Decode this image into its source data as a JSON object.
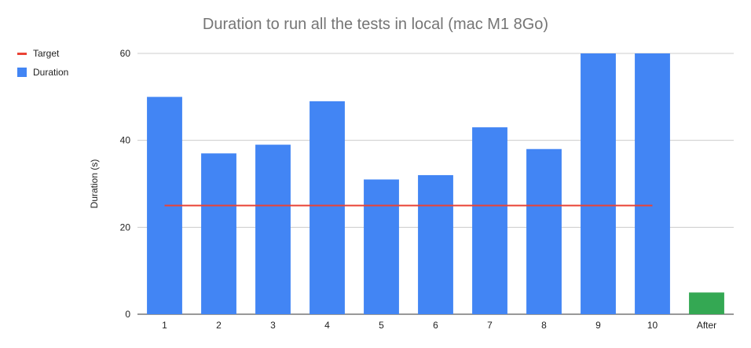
{
  "chart_data": {
    "type": "bar",
    "title": "Duration to run all the tests in local (mac M1 8Go)",
    "xlabel": "",
    "ylabel": "Duration (s)",
    "ylim": [
      0,
      60
    ],
    "yticks": [
      0,
      20,
      40,
      60
    ],
    "categories": [
      "1",
      "2",
      "3",
      "4",
      "5",
      "6",
      "7",
      "8",
      "9",
      "10",
      "After"
    ],
    "series": [
      {
        "name": "Duration",
        "type": "bar",
        "color": "#4285f4",
        "values": [
          50,
          37,
          39,
          49,
          31,
          32,
          43,
          38,
          60,
          60,
          5
        ],
        "point_colors": [
          "#4285f4",
          "#4285f4",
          "#4285f4",
          "#4285f4",
          "#4285f4",
          "#4285f4",
          "#4285f4",
          "#4285f4",
          "#4285f4",
          "#4285f4",
          "#34a853"
        ]
      },
      {
        "name": "Target",
        "type": "line",
        "color": "#ea4335",
        "values": [
          25,
          25,
          25,
          25,
          25,
          25,
          25,
          25,
          25,
          25,
          null
        ]
      }
    ],
    "grid": true,
    "legend_position": "left"
  }
}
